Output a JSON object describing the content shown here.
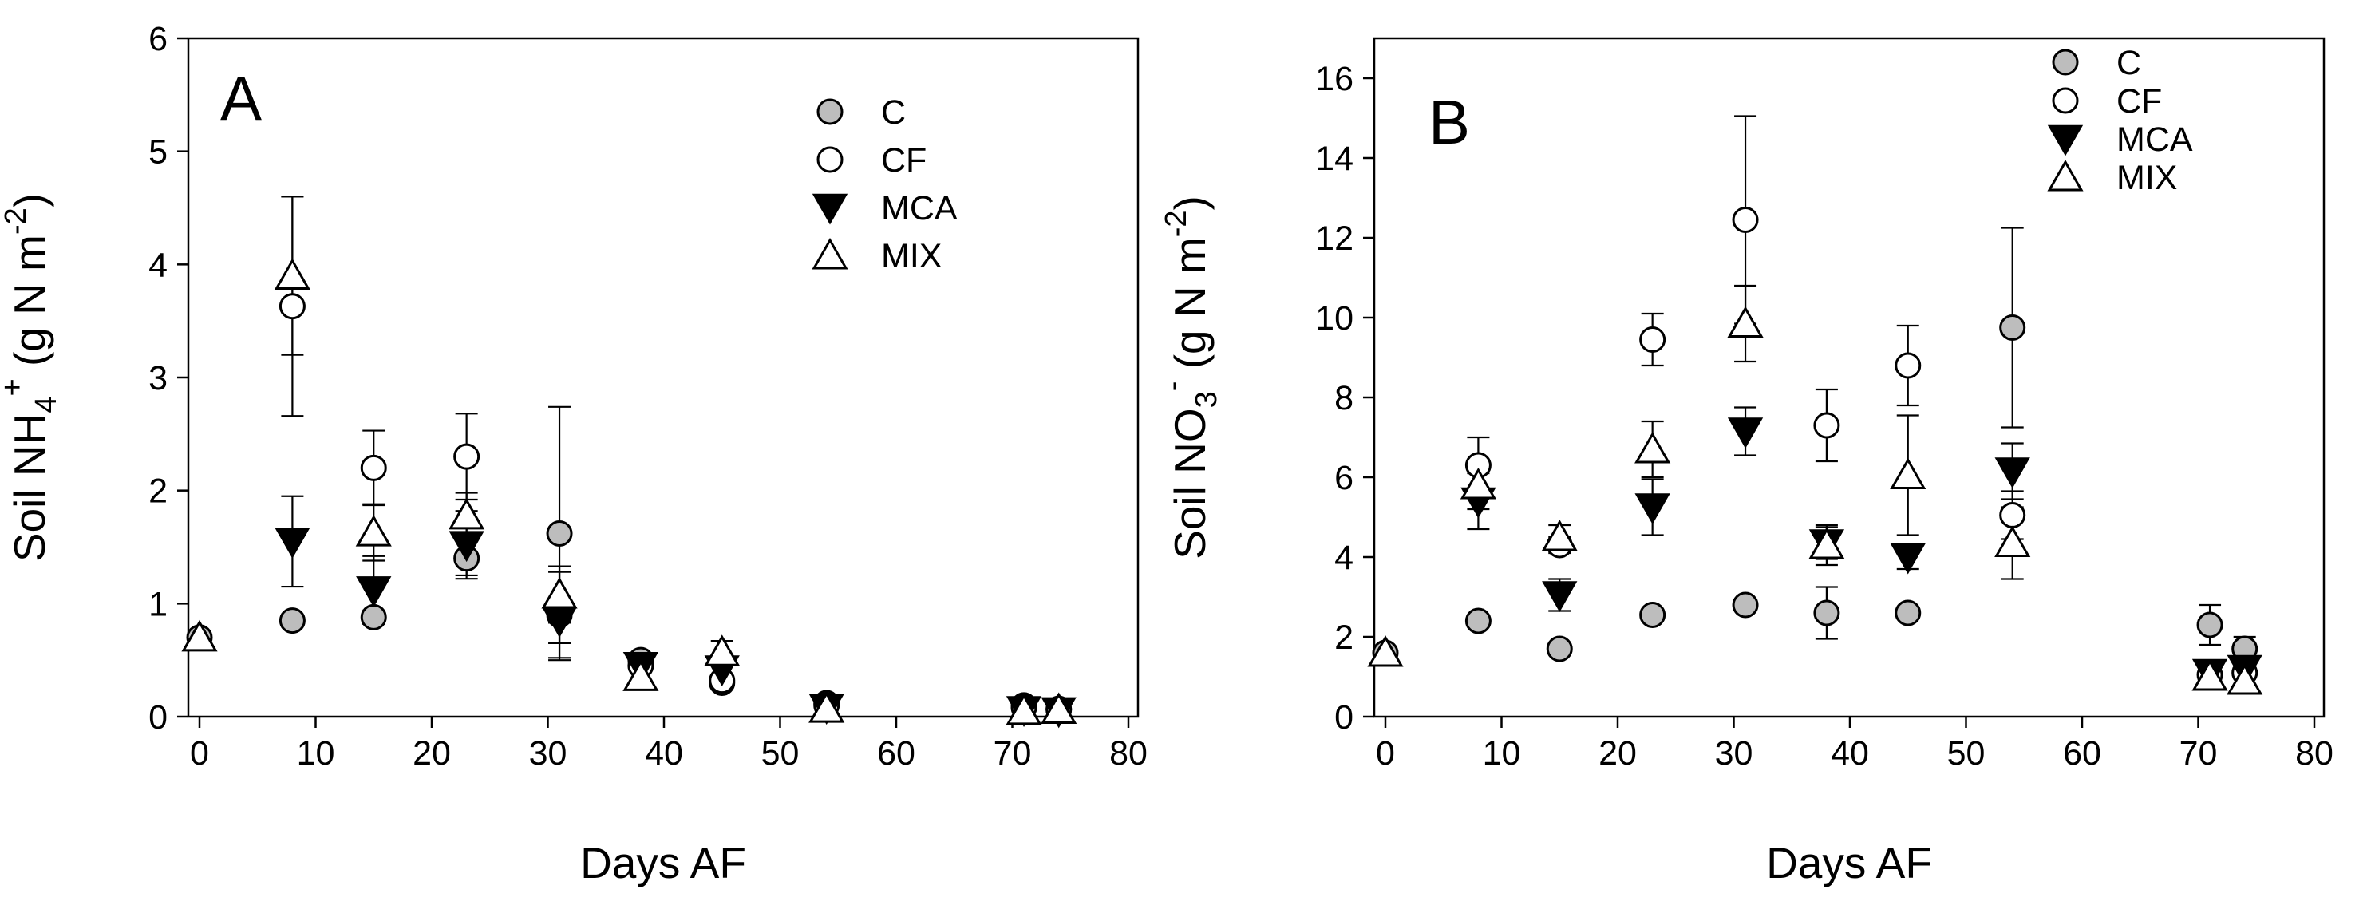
{
  "chart_data": [
    {
      "type": "scatter",
      "panel_label": "A",
      "xlabel": "Days AF",
      "ylabel_text": {
        "pre": "Soil NH",
        "sub": "4",
        "sup": "+",
        "post": " (g N m",
        "unit_sup": "-2",
        "close": ")"
      },
      "xlim": [
        0,
        80
      ],
      "ylim": [
        0,
        6
      ],
      "xticks": [
        0,
        10,
        20,
        30,
        40,
        50,
        60,
        70,
        80
      ],
      "yticks": [
        0,
        1,
        2,
        3,
        4,
        5,
        6
      ],
      "legend_position": "top-right",
      "legend": [
        "C",
        "CF",
        "MCA",
        "MIX"
      ],
      "series": [
        {
          "name": "C",
          "marker": "circle-filled",
          "x": [
            0,
            8,
            15,
            23,
            31,
            38,
            45,
            54,
            71,
            74
          ],
          "y": [
            0.7,
            0.85,
            0.88,
            1.4,
            1.62,
            0.5,
            0.3,
            0.12,
            0.1,
            0.07
          ],
          "err": [
            0.05,
            0.05,
            0.06,
            0.15,
            1.12,
            0.06,
            0.05,
            0.03,
            0.02,
            0.02
          ]
        },
        {
          "name": "CF",
          "marker": "circle-open",
          "x": [
            8,
            15,
            23,
            31,
            38,
            45,
            54,
            71,
            74
          ],
          "y": [
            3.63,
            2.2,
            2.3,
            0.9,
            0.45,
            0.32,
            0.1,
            0.08,
            0.06
          ],
          "err": [
            0.97,
            0.33,
            0.38,
            0.38,
            0.05,
            0.05,
            0.02,
            0.02,
            0.02
          ]
        },
        {
          "name": "MCA",
          "marker": "triangle-down",
          "x": [
            8,
            15,
            23,
            31,
            38,
            45,
            54,
            71,
            74
          ],
          "y": [
            1.55,
            1.12,
            1.52,
            0.85,
            0.45,
            0.42,
            0.08,
            0.06,
            0.05
          ],
          "err": [
            0.4,
            0.3,
            0.3,
            0.2,
            0.05,
            0.05,
            0.02,
            0.02,
            0.02
          ]
        },
        {
          "name": "MIX",
          "marker": "triangle-up",
          "x": [
            0,
            8,
            15,
            23,
            31,
            38,
            45,
            54,
            71,
            74
          ],
          "y": [
            0.7,
            3.9,
            1.63,
            1.78,
            1.08,
            0.35,
            0.57,
            0.07,
            0.05,
            0.06
          ],
          "err": [
            0.04,
            0.7,
            0.25,
            0.2,
            0.25,
            0.05,
            0.1,
            0.02,
            0.02,
            0.02
          ]
        }
      ]
    },
    {
      "type": "scatter",
      "panel_label": "B",
      "xlabel": "Days AF",
      "ylabel_text": {
        "pre": "Soil NO",
        "sub": "3",
        "sup": "-",
        "post": " (g N m",
        "unit_sup": "-2",
        "close": ")"
      },
      "xlim": [
        0,
        80
      ],
      "ylim": [
        0,
        17
      ],
      "xticks": [
        0,
        10,
        20,
        30,
        40,
        50,
        60,
        70,
        80
      ],
      "yticks": [
        0,
        2,
        4,
        6,
        8,
        10,
        12,
        14,
        16
      ],
      "legend_position": "top-right",
      "legend": [
        "C",
        "CF",
        "MCA",
        "MIX"
      ],
      "series": [
        {
          "name": "C",
          "marker": "circle-filled",
          "x": [
            0,
            8,
            15,
            23,
            31,
            38,
            45,
            54,
            71,
            74
          ],
          "y": [
            1.6,
            2.4,
            1.7,
            2.55,
            2.8,
            2.6,
            2.6,
            9.75,
            2.3,
            1.7
          ],
          "err": [
            0.1,
            0.1,
            0.1,
            0.1,
            0.1,
            0.65,
            0.1,
            2.5,
            0.5,
            0.3
          ]
        },
        {
          "name": "CF",
          "marker": "circle-open",
          "x": [
            8,
            15,
            23,
            31,
            38,
            45,
            54,
            71,
            74
          ],
          "y": [
            6.3,
            4.3,
            9.45,
            12.45,
            7.3,
            8.8,
            5.05,
            1.05,
            1.1
          ],
          "err": [
            0.7,
            0.2,
            0.65,
            2.6,
            0.9,
            1.0,
            0.6,
            0.2,
            0.15
          ]
        },
        {
          "name": "MCA",
          "marker": "triangle-down",
          "x": [
            8,
            15,
            23,
            31,
            38,
            45,
            54,
            71,
            74
          ],
          "y": [
            5.4,
            3.05,
            5.25,
            7.15,
            4.35,
            4.0,
            6.15,
            1.1,
            1.2
          ],
          "err": [
            0.7,
            0.4,
            0.7,
            0.6,
            0.4,
            0.3,
            0.7,
            0.15,
            0.15
          ]
        },
        {
          "name": "MIX",
          "marker": "triangle-up",
          "x": [
            0,
            8,
            15,
            23,
            31,
            38,
            45,
            54,
            71,
            74
          ],
          "y": [
            1.6,
            5.8,
            4.5,
            6.7,
            9.85,
            4.3,
            6.05,
            4.35,
            1.0,
            0.9
          ],
          "err": [
            0.1,
            0.6,
            0.3,
            0.7,
            0.95,
            0.5,
            1.5,
            0.9,
            0.15,
            0.15
          ]
        }
      ]
    }
  ]
}
